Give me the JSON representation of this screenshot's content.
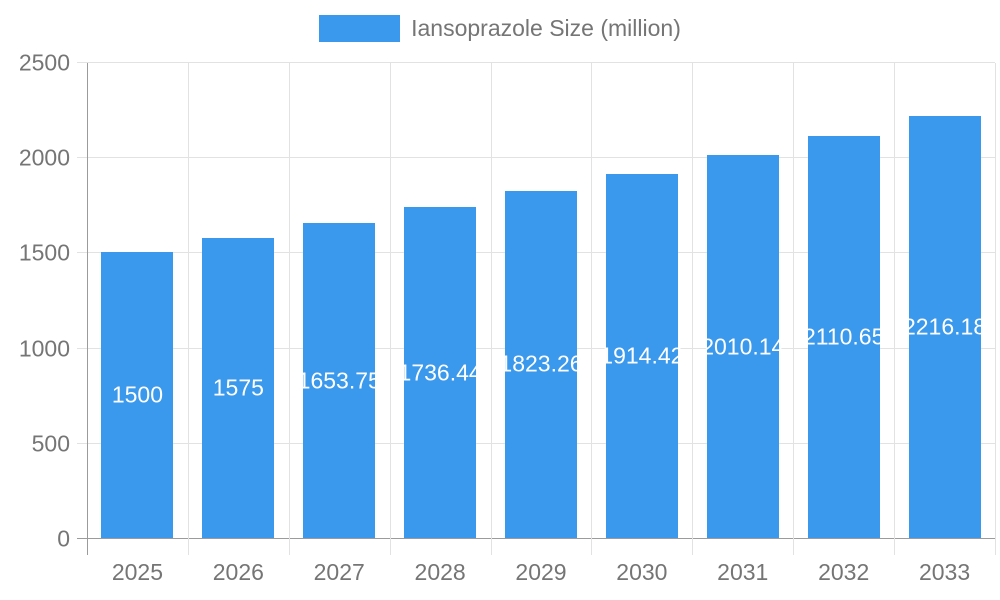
{
  "legend": {
    "label": "Iansoprazole Size (million)",
    "swatch_color": "#3A99EC"
  },
  "chart_data": {
    "type": "bar",
    "title": "Iansoprazole Size (million)",
    "categories": [
      "2025",
      "2026",
      "2027",
      "2028",
      "2029",
      "2030",
      "2031",
      "2032",
      "2033"
    ],
    "series": [
      {
        "name": "Iansoprazole Size (million)",
        "values": [
          1500,
          1575,
          1653.75,
          1736.44,
          1823.26,
          1914.42,
          2010.14,
          2110.65,
          2216.18
        ]
      }
    ],
    "value_labels": [
      "1500",
      "1575",
      "1653.75",
      "1736.44",
      "1823.26",
      "1914.42",
      "2010.14",
      "2110.65",
      "2216.18"
    ],
    "xlabel": "",
    "ylabel": "",
    "ylim": [
      0,
      2500
    ],
    "yticks": [
      0,
      500,
      1000,
      1500,
      2000,
      2500
    ],
    "ytick_labels": [
      "0",
      "500",
      "1000",
      "1500",
      "2000",
      "2500"
    ],
    "grid": true,
    "legend_position": "top",
    "bar_color": "#3A99EC",
    "value_label_color": "#FFFFFF",
    "axis_color": "#9B9B9B",
    "grid_color": "#E2E2E2",
    "text_color": "#757575"
  }
}
